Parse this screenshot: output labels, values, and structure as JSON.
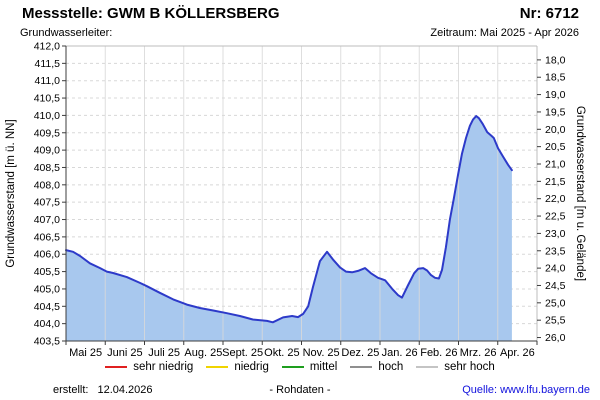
{
  "header": {
    "title": "Messstelle: GWM B KÖLLERSBERG",
    "number": "Nr: 6712",
    "aquifer_label": "Grundwasserleiter:",
    "period": "Zeitraum: Mai 2025 - Apr 2026"
  },
  "footer": {
    "created_label": "erstellt:",
    "created_date": "12.04.2026",
    "center_label": "- Rohdaten -",
    "source_label": "Quelle: www.lfu.bayern.de"
  },
  "legend": [
    {
      "label": "sehr niedrig",
      "color": "#e02020"
    },
    {
      "label": "niedrig",
      "color": "#f0d400"
    },
    {
      "label": "mittel",
      "color": "#1e9e1e"
    },
    {
      "label": "hoch",
      "color": "#8f8f8f"
    },
    {
      "label": "sehr hoch",
      "color": "#c4c4c4"
    }
  ],
  "colors": {
    "series_line": "#2d3ac9",
    "series_fill": "#a8c8ee",
    "grid": "#d8d8d8",
    "month_grid": "#d9d9d9",
    "axis_dark": "#3c3c3c",
    "border_light": "#bcbcbc",
    "link_blue": "#1212dd"
  },
  "chart_data": {
    "type": "area",
    "title": "Grundwasserstand GWM B KÖLLERSBERG, Rohdaten Mai 2025 - Apr 2026",
    "grid": true,
    "legend_position": "bottom",
    "x_axis": {
      "labels": [
        "Mai 25",
        "Juni 25",
        "Juli 25",
        "Aug. 25",
        "Sept. 25",
        "Okt. 25",
        "Nov. 25",
        "Dez. 25",
        "Jan. 26",
        "Feb. 26",
        "Mrz. 26",
        "Apr. 26"
      ],
      "months_total": 12
    },
    "y_left": {
      "label": "Grundwasserstand [m ü. NN]",
      "min": 403.5,
      "max": 412.0,
      "step": 0.5,
      "ticks": [
        "412,0",
        "411,5",
        "411,0",
        "410,5",
        "410,0",
        "409,5",
        "409,0",
        "408,5",
        "408,0",
        "407,5",
        "407,0",
        "406,5",
        "406,0",
        "405,5",
        "405,0",
        "404,5",
        "404,0",
        "403,5"
      ]
    },
    "y_right": {
      "label": "Grundwasserstand [m u. Gelände]",
      "min": 18.0,
      "max": 26.0,
      "step": 0.5,
      "ground_ref_m_nn": 429.6,
      "ticks": [
        "18,0",
        "18,5",
        "19,0",
        "19,5",
        "20,0",
        "20,5",
        "21,0",
        "21,5",
        "22,0",
        "22,5",
        "23,0",
        "23,5",
        "24,0",
        "24,5",
        "25,0",
        "25,5",
        "26,0"
      ]
    },
    "series": [
      {
        "name": "Grundwasserstand Rohdaten",
        "unit": "m ü. NN",
        "x_unit": "months since 2025-05-01",
        "points": [
          [
            0.0,
            406.12
          ],
          [
            0.18,
            406.07
          ],
          [
            0.36,
            405.95
          ],
          [
            0.61,
            405.74
          ],
          [
            0.87,
            405.6
          ],
          [
            1.04,
            405.5
          ],
          [
            1.2,
            405.46
          ],
          [
            1.55,
            405.34
          ],
          [
            1.89,
            405.17
          ],
          [
            2.06,
            405.08
          ],
          [
            2.39,
            404.89
          ],
          [
            2.73,
            404.7
          ],
          [
            3.08,
            404.55
          ],
          [
            3.41,
            404.45
          ],
          [
            3.75,
            404.38
          ],
          [
            4.1,
            404.3
          ],
          [
            4.43,
            404.22
          ],
          [
            4.76,
            404.12
          ],
          [
            5.12,
            404.08
          ],
          [
            5.27,
            404.04
          ],
          [
            5.53,
            404.18
          ],
          [
            5.76,
            404.22
          ],
          [
            5.91,
            404.19
          ],
          [
            6.04,
            404.28
          ],
          [
            6.17,
            404.5
          ],
          [
            6.29,
            405.05
          ],
          [
            6.47,
            405.8
          ],
          [
            6.65,
            406.07
          ],
          [
            6.8,
            405.85
          ],
          [
            6.98,
            405.62
          ],
          [
            7.13,
            405.5
          ],
          [
            7.29,
            405.48
          ],
          [
            7.44,
            405.52
          ],
          [
            7.62,
            405.6
          ],
          [
            7.77,
            405.45
          ],
          [
            7.95,
            405.32
          ],
          [
            8.13,
            405.25
          ],
          [
            8.31,
            405.0
          ],
          [
            8.46,
            404.82
          ],
          [
            8.56,
            404.75
          ],
          [
            8.71,
            405.1
          ],
          [
            8.87,
            405.45
          ],
          [
            8.97,
            405.58
          ],
          [
            9.1,
            405.6
          ],
          [
            9.2,
            405.53
          ],
          [
            9.3,
            405.4
          ],
          [
            9.4,
            405.32
          ],
          [
            9.5,
            405.3
          ],
          [
            9.58,
            405.55
          ],
          [
            9.68,
            406.2
          ],
          [
            9.78,
            407.0
          ],
          [
            9.88,
            407.6
          ],
          [
            9.99,
            408.3
          ],
          [
            10.09,
            408.9
          ],
          [
            10.19,
            409.35
          ],
          [
            10.29,
            409.7
          ],
          [
            10.37,
            409.88
          ],
          [
            10.45,
            409.98
          ],
          [
            10.52,
            409.92
          ],
          [
            10.62,
            409.75
          ],
          [
            10.73,
            409.52
          ],
          [
            10.83,
            409.42
          ],
          [
            10.9,
            409.35
          ],
          [
            11.01,
            409.05
          ],
          [
            11.13,
            408.82
          ],
          [
            11.26,
            408.58
          ],
          [
            11.36,
            408.42
          ]
        ]
      }
    ]
  }
}
